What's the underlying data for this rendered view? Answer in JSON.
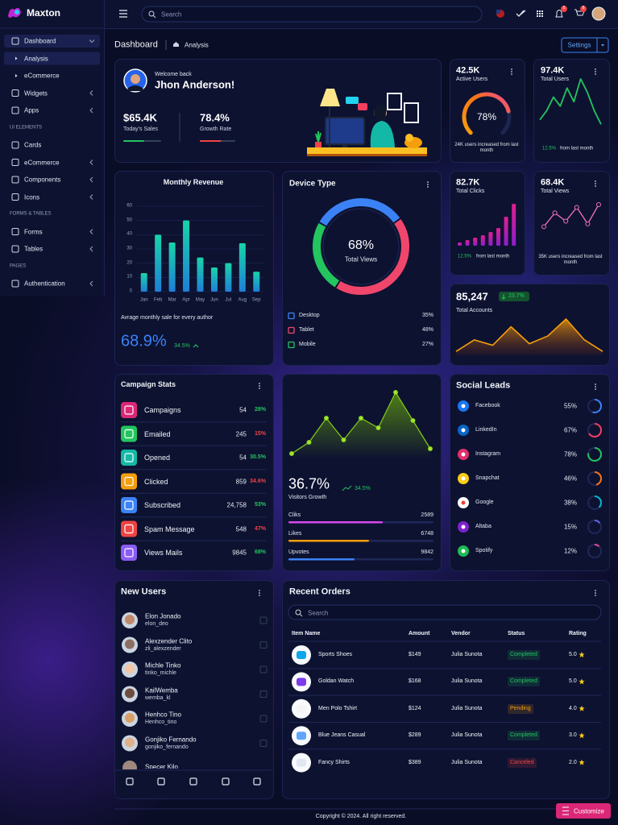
{
  "sidebar": {
    "brand": "Maxton",
    "groups": [
      {
        "items": [
          {
            "label": "Dashboard",
            "children": [
              "Analysis",
              "eCommerce"
            ]
          },
          {
            "label": "Widgets"
          },
          {
            "label": "Apps"
          }
        ]
      },
      {
        "heading": "UI ELEMENTS",
        "items": [
          {
            "label": "Cards"
          },
          {
            "label": "eCommerce"
          },
          {
            "label": "Components"
          },
          {
            "label": "Icons"
          }
        ]
      },
      {
        "heading": "FORMS & TABLES",
        "items": [
          {
            "label": "Forms"
          },
          {
            "label": "Tables"
          }
        ]
      },
      {
        "heading": "PAGES",
        "items": [
          {
            "label": "Authentication"
          }
        ]
      }
    ]
  },
  "topbar": {
    "search": "Search",
    "notifications": "5",
    "cart": "8"
  },
  "breadcrumb": {
    "title": "Dashboard",
    "current": "Analysis",
    "button": "Settings"
  },
  "welcome": {
    "greeting": "Welcome back",
    "name": "Jhon Anderson!",
    "stats": [
      {
        "value": "$65.4K",
        "label": "Today's Sales"
      },
      {
        "value": "78.4%",
        "label": "Growth Rate"
      }
    ]
  },
  "active_users": {
    "value": "42.5K",
    "label": "Active Users",
    "values": [
      78
    ],
    "value_labels": [
      "78%"
    ],
    "note": "24K users increased from last month"
  },
  "total_users": {
    "value": "97.4K",
    "label": "Total Users",
    "change": "12.5%",
    "note": "from last month",
    "values": [
      2,
      4,
      7,
      5,
      9,
      6,
      11,
      8,
      4,
      1
    ],
    "color": "#22c55e"
  },
  "monthly_revenue": {
    "type": "bar",
    "title": "Monthly Revenue",
    "categories": [
      "Jan",
      "Feb",
      "Mar",
      "Apr",
      "May",
      "Jun",
      "Jul",
      "Aug",
      "Sep"
    ],
    "values": [
      13,
      40,
      34.5,
      50,
      24,
      17,
      20,
      34,
      14
    ],
    "ylim": [
      0,
      60
    ],
    "yticks": [
      0,
      10,
      20,
      30,
      40,
      50,
      60
    ],
    "grid": true,
    "note": "Avrage monthly sale for every author",
    "value": "68.9%",
    "change": "34.5%"
  },
  "device_type": {
    "type": "donut",
    "title": "Device Type",
    "center_value": "68%",
    "center_label": "Total Views",
    "names": [
      "Desktop",
      "Tablet",
      "Mobile"
    ],
    "values": [
      35,
      48,
      27
    ],
    "value_labels": [
      "35%",
      "48%",
      "27%"
    ],
    "colors": [
      "#3b82f6",
      "#f0466b",
      "#22c55e"
    ]
  },
  "total_clicks": {
    "value": "82.7K",
    "label": "Total Clicks",
    "change": "12.5%",
    "note": "from last month",
    "values": [
      4,
      7,
      10,
      13,
      17,
      22,
      36,
      52
    ],
    "color": "#d6168b"
  },
  "total_views": {
    "value": "68.4K",
    "label": "Total Views",
    "note": "35K users increased from last month",
    "values": [
      2,
      4.5,
      3,
      5.5,
      2.5,
      6
    ],
    "color": "#f472b6"
  },
  "total_accounts": {
    "value": "85,247",
    "change": "23.7%",
    "label": "Total Accounts",
    "values": [
      5,
      20,
      13,
      37,
      15,
      25,
      47,
      20,
      5
    ],
    "color": "#f59e0b"
  },
  "campaign_stats": {
    "title": "Campaign Stats",
    "rows": [
      [
        "Campaigns",
        "54",
        "28%"
      ],
      [
        "Emailed",
        "245",
        "15%"
      ],
      [
        "Opened",
        "54",
        "30.5%"
      ],
      [
        "Clicked",
        "859",
        "34.6%"
      ],
      [
        "Subscribed",
        "24,758",
        "53%"
      ],
      [
        "Spam Message",
        "548",
        "47%"
      ],
      [
        "Views Mails",
        "9845",
        "68%"
      ]
    ],
    "pct_colors": [
      "#22c55e",
      "#ef4444",
      "#22c55e",
      "#ef4444",
      "#22c55e",
      "#ef4444",
      "#22c55e"
    ]
  },
  "visitors": {
    "value": "36.7%",
    "change": "34.5%",
    "label": "Visitors Growth",
    "values": [
      7,
      21,
      51,
      24,
      51,
      39,
      83,
      48,
      13
    ],
    "color": "#84cc16",
    "metrics": [
      [
        "Cliks",
        "2589"
      ],
      [
        "Likes",
        "6748"
      ],
      [
        "Upvotes",
        "9842"
      ]
    ]
  },
  "social_leads": {
    "title": "Social Leads",
    "names": [
      "Facebook",
      "LinkedIn",
      "Instagram",
      "Snapchat",
      "Google",
      "Altaba",
      "Spotify"
    ],
    "values": [
      55,
      67,
      78,
      46,
      38,
      15,
      12
    ],
    "value_labels": [
      "55%",
      "67%",
      "78%",
      "46%",
      "38%",
      "15%",
      "12%"
    ]
  },
  "new_users": {
    "title": "New Users",
    "users": [
      [
        "Elon Jonado",
        "elon_deo"
      ],
      [
        "Alexzender Clito",
        "zli_alexzender"
      ],
      [
        "Michle Tinko",
        "tinko_michle"
      ],
      [
        "KailWemba",
        "wemba_kl"
      ],
      [
        "Henhco Tino",
        "Henhco_tino"
      ],
      [
        "Gonjiko Fernando",
        "gonjiko_fernando"
      ],
      [
        "Specer Kilo",
        ""
      ]
    ]
  },
  "recent_orders": {
    "title": "Recent Orders",
    "search": "Search",
    "columns": [
      "Item Name",
      "Amount",
      "Vendor",
      "Status",
      "Rating"
    ],
    "rows": [
      [
        "Sports Shoes",
        "$149",
        "Julia Sunota",
        "Completed",
        "5.0"
      ],
      [
        "Goldan Watch",
        "$168",
        "Julia Sunota",
        "Completed",
        "5.0"
      ],
      [
        "Men Polo Tshirt",
        "$124",
        "Julia Sunota",
        "Pending",
        "4.0"
      ],
      [
        "Blue Jeans Casual",
        "$289",
        "Julia Sunota",
        "Completed",
        "3.0"
      ],
      [
        "Fancy Shirts",
        "$389",
        "Julia Sunota",
        "Canceled",
        "2.0"
      ]
    ],
    "status_colors": [
      "#22c55e",
      "#22c55e",
      "#f59e0b",
      "#22c55e",
      "#ef4444"
    ]
  },
  "footer": {
    "copyright": "Copyright © 2024. All right reserved.",
    "customize": "Customize"
  }
}
